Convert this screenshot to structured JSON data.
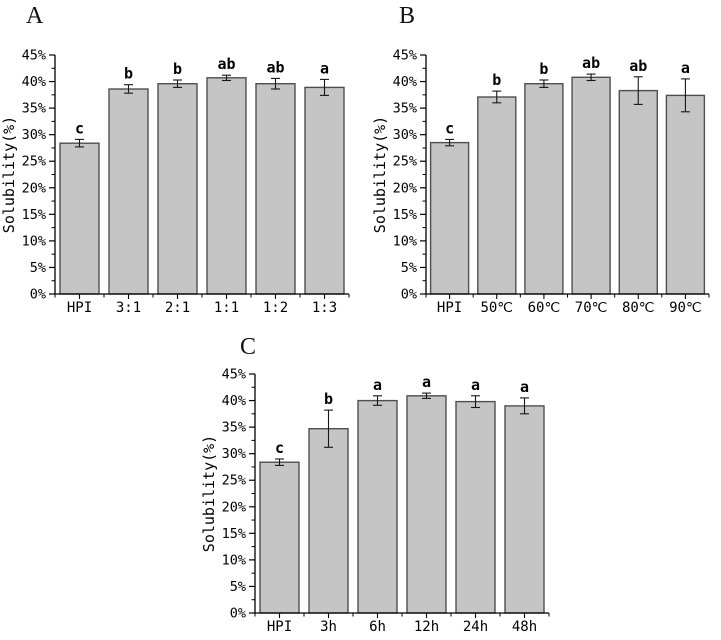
{
  "figure": {
    "background": "#ffffff",
    "bar_fill": "#c5c5c5",
    "bar_stroke": "#4f4f4f",
    "axis_color": "#000000",
    "error_bar_color": "#161616",
    "text_color": "#000000"
  },
  "chart_data": [
    {
      "type": "bar",
      "panel_label": "A",
      "title": "",
      "xlabel": "",
      "ylabel": "Solubility(%)",
      "ylim": [
        0,
        45
      ],
      "ytick_step": 5,
      "ytick_labels": [
        "0%",
        "5%",
        "10%",
        "15%",
        "20%",
        "25%",
        "30%",
        "35%",
        "40%",
        "45%"
      ],
      "grid": false,
      "legend": null,
      "position_hint": "top-left",
      "categories": [
        "HPI",
        "3:1",
        "2:1",
        "1:1",
        "1:2",
        "1:3"
      ],
      "values": [
        28.4,
        38.6,
        39.6,
        40.7,
        39.6,
        38.9
      ],
      "errors": [
        0.7,
        0.8,
        0.7,
        0.5,
        1.0,
        1.5
      ],
      "sig_letters": [
        "c",
        "b",
        "b",
        "ab",
        "ab",
        "a"
      ]
    },
    {
      "type": "bar",
      "panel_label": "B",
      "title": "",
      "xlabel": "",
      "ylabel": "Solubility(%)",
      "ylim": [
        0,
        45
      ],
      "ytick_step": 5,
      "ytick_labels": [
        "0%",
        "5%",
        "10%",
        "15%",
        "20%",
        "25%",
        "30%",
        "35%",
        "40%",
        "45%"
      ],
      "grid": false,
      "legend": null,
      "position_hint": "top-right",
      "categories": [
        "HPI",
        "50℃",
        "60℃",
        "70℃",
        "80℃",
        "90℃"
      ],
      "values": [
        28.5,
        37.1,
        39.6,
        40.8,
        38.3,
        37.4
      ],
      "errors": [
        0.6,
        1.1,
        0.7,
        0.6,
        2.6,
        3.1
      ],
      "sig_letters": [
        "c",
        "b",
        "b",
        "ab",
        "ab",
        "a"
      ]
    },
    {
      "type": "bar",
      "panel_label": "C",
      "title": "",
      "xlabel": "",
      "ylabel": "Solubility(%)",
      "ylim": [
        0,
        45
      ],
      "ytick_step": 5,
      "ytick_labels": [
        "0%",
        "5%",
        "10%",
        "15%",
        "20%",
        "25%",
        "30%",
        "35%",
        "40%",
        "45%"
      ],
      "grid": false,
      "legend": null,
      "position_hint": "bottom-center",
      "categories": [
        "HPI",
        "3h",
        "6h",
        "12h",
        "24h",
        "48h"
      ],
      "values": [
        28.4,
        34.7,
        40.0,
        40.9,
        39.8,
        39.0
      ],
      "errors": [
        0.6,
        3.5,
        0.9,
        0.5,
        1.1,
        1.5
      ],
      "sig_letters": [
        "c",
        "b",
        "a",
        "a",
        "a",
        "a"
      ]
    }
  ]
}
